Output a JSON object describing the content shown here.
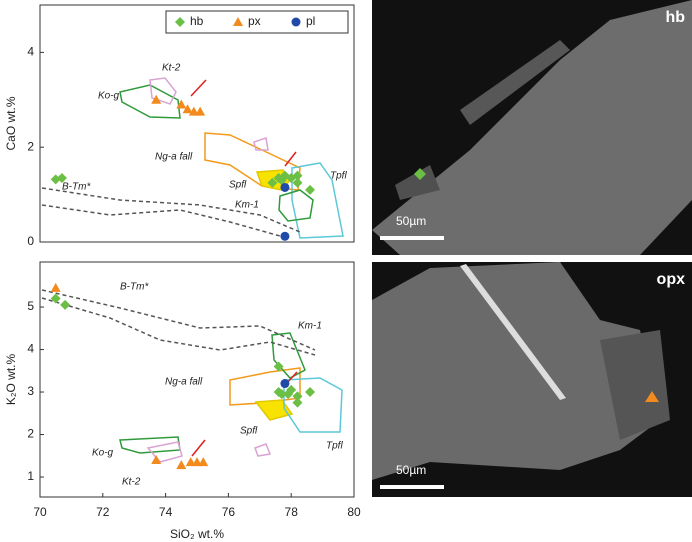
{
  "chart_data": [
    {
      "type": "scatter",
      "ylabel": "CaO wt.%",
      "xlim": [
        70,
        80
      ],
      "ylim": [
        0,
        5
      ],
      "yticks": [
        0,
        2,
        4
      ],
      "legend": "upper right",
      "annotations": [
        "Ko-g",
        "Kt-2",
        "Ng-a fall",
        "Spfl",
        "Tpfl",
        "Km-1",
        "B-Tm*"
      ],
      "series": [
        {
          "name": "hb",
          "color": "#6cbf45",
          "marker": "diamond",
          "x": [
            70.5,
            70.7,
            77.4,
            77.6,
            77.7,
            77.8,
            78.0,
            78.2,
            78.2,
            78.6
          ],
          "values": [
            1.32,
            1.35,
            1.25,
            1.35,
            1.3,
            1.4,
            1.35,
            1.4,
            1.25,
            1.1
          ]
        },
        {
          "name": "px",
          "color": "#f28a1e",
          "marker": "triangle",
          "x": [
            73.7,
            74.5,
            74.7,
            74.9,
            75.1
          ],
          "values": [
            3.0,
            2.9,
            2.8,
            2.75,
            2.75
          ]
        },
        {
          "name": "pl",
          "color": "#1f4aa8",
          "marker": "circle",
          "x": [
            77.8,
            77.8
          ],
          "values": [
            1.15,
            0.12
          ]
        }
      ]
    },
    {
      "type": "scatter",
      "ylabel": "K₂O wt.%",
      "xlabel": "SiO₂ wt.%",
      "xlim": [
        70,
        80
      ],
      "ylim": [
        0.53,
        6.06
      ],
      "xticks": [
        70,
        72,
        74,
        76,
        78,
        80
      ],
      "yticks": [
        1,
        2,
        3,
        4,
        5
      ],
      "annotations": [
        "B-Tm*",
        "Km-1",
        "Ng-a fall",
        "Spfl",
        "Tpfl",
        "Ko-g",
        "Kt-2"
      ],
      "series": [
        {
          "color": "#6cbf45",
          "marker": "diamond",
          "x": [
            70.5,
            70.8,
            77.6,
            77.6,
            77.7,
            77.9,
            78.0,
            78.2,
            78.2,
            78.6
          ],
          "values": [
            5.2,
            5.05,
            3.6,
            3.0,
            2.95,
            2.95,
            3.05,
            2.9,
            2.75,
            3.0
          ]
        },
        {
          "color": "#f28a1e",
          "marker": "triangle",
          "x": [
            70.5,
            73.7,
            74.5,
            74.8,
            75.0,
            75.2
          ],
          "values": [
            5.45,
            1.4,
            1.28,
            1.35,
            1.35,
            1.35
          ]
        },
        {
          "color": "#1f4aa8",
          "marker": "circle",
          "x": [
            77.8
          ],
          "values": [
            3.2
          ]
        }
      ]
    }
  ],
  "images": [
    {
      "label": "hb",
      "scale": "50µm"
    },
    {
      "label": "opx",
      "scale": "50µm"
    }
  ]
}
